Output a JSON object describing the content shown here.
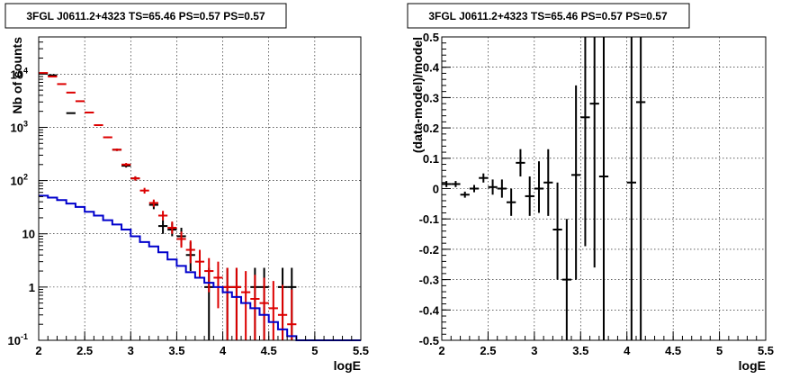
{
  "chart_data": [
    {
      "type": "scatter",
      "title": "3FGL J0611.2+4323 TS=65.46 PS=0.57 PS=0.57",
      "xlabel": "logE",
      "ylabel": "Nb of counts",
      "xlim": [
        2,
        5.5
      ],
      "ylim": [
        0.1,
        50000
      ],
      "yscale": "log",
      "grid": true,
      "x_ticks": [
        "2",
        "2.5",
        "3",
        "3.5",
        "4",
        "4.5",
        "5",
        "5.5"
      ],
      "y_ticks": [
        {
          "value": 0.1,
          "base": "10",
          "exp": "-1"
        },
        {
          "value": 1,
          "label": "1"
        },
        {
          "value": 10,
          "label": "10"
        },
        {
          "value": 100,
          "base": "10",
          "exp": "2"
        },
        {
          "value": 1000,
          "base": "10",
          "exp": "3"
        },
        {
          "value": 10000,
          "base": "10",
          "exp": "4"
        }
      ],
      "series": [
        {
          "color": "#000000",
          "kind": "errorbar",
          "x": [
            2.15,
            2.35,
            2.85,
            2.95,
            3.05,
            3.25,
            3.35,
            3.45,
            3.55,
            3.65,
            3.85,
            4.05,
            4.15,
            4.35,
            4.45,
            4.65,
            4.75
          ],
          "y": [
            9500,
            1850,
            380,
            190,
            110,
            35,
            14,
            12,
            9,
            4,
            1,
            1,
            1,
            1,
            1,
            1,
            1
          ],
          "ylo": [
            9400,
            1800,
            360,
            176,
            100,
            29,
            10,
            9,
            6,
            2,
            0.1,
            0.1,
            0.1,
            0.1,
            0.1,
            0.1,
            0.1
          ],
          "yhi": [
            9600,
            1900,
            400,
            204,
            120,
            41,
            18,
            16,
            13,
            7,
            2.3,
            2.3,
            2.3,
            2.3,
            2.3,
            2.3,
            2.3
          ]
        },
        {
          "color": "#dd0000",
          "kind": "errorbar",
          "x": [
            2.05,
            2.15,
            2.25,
            2.35,
            2.45,
            2.55,
            2.65,
            2.75,
            2.85,
            2.95,
            3.05,
            3.15,
            3.25,
            3.35,
            3.45,
            3.55,
            3.65,
            3.75,
            3.85,
            3.95,
            4.05,
            4.15,
            4.25,
            4.35,
            4.45,
            4.55,
            4.65,
            4.75
          ],
          "y": [
            10500,
            9000,
            6500,
            4500,
            3100,
            1900,
            1100,
            650,
            380,
            200,
            110,
            65,
            38,
            22,
            13,
            8,
            5,
            3,
            2,
            1.5,
            1,
            1,
            0.8,
            0.6,
            0.5,
            0.4,
            0.3,
            0.2
          ],
          "ylo": [
            10400,
            8900,
            6420,
            4430,
            3040,
            1860,
            1070,
            625,
            360,
            186,
            100,
            57,
            32,
            18,
            10,
            5.5,
            2.8,
            1.5,
            0.8,
            0.4,
            0.1,
            0.1,
            0.1,
            0.1,
            0.1,
            0.1,
            0.1,
            0.1
          ],
          "yhi": [
            10600,
            9100,
            6580,
            4570,
            3160,
            1940,
            1130,
            675,
            400,
            214,
            120,
            73,
            44,
            27,
            17,
            11,
            7.5,
            5,
            3.5,
            3,
            2.3,
            2.3,
            2,
            1.7,
            1.5,
            1.3,
            1.1,
            0.9
          ]
        },
        {
          "color": "#0000cc",
          "kind": "step",
          "edges": [
            2.0,
            2.1,
            2.2,
            2.3,
            2.4,
            2.5,
            2.6,
            2.7,
            2.8,
            2.9,
            3.0,
            3.1,
            3.2,
            3.3,
            3.4,
            3.5,
            3.6,
            3.7,
            3.8,
            3.9,
            4.0,
            4.1,
            4.2,
            4.3,
            4.4,
            4.5,
            4.6,
            4.7,
            4.8,
            4.9,
            5.0,
            5.5
          ],
          "y": [
            52,
            48,
            43,
            37,
            32,
            26,
            22,
            18,
            15,
            12,
            9,
            7,
            5.8,
            4.5,
            3.3,
            2.5,
            1.9,
            1.5,
            1.2,
            1.0,
            0.8,
            0.65,
            0.5,
            0.4,
            0.3,
            0.22,
            0.16,
            0.12,
            0.1,
            0.1,
            0.1
          ]
        }
      ]
    },
    {
      "type": "scatter",
      "title": "3FGL J0611.2+4323 TS=65.46 PS=0.57 PS=0.57",
      "xlabel": "logE",
      "ylabel": "(data-model)/model",
      "xlim": [
        2,
        5.5
      ],
      "ylim": [
        -0.5,
        0.5
      ],
      "grid": true,
      "x_ticks": [
        "2",
        "2.5",
        "3",
        "3.5",
        "4",
        "4.5",
        "5",
        "5.5"
      ],
      "y_ticks": [
        "-0.5",
        "-0.4",
        "-0.3",
        "-0.2",
        "-0.1",
        "0",
        "0.1",
        "0.2",
        "0.3",
        "0.4",
        "0.5"
      ],
      "series": [
        {
          "color": "#000000",
          "kind": "errorbar",
          "x": [
            2.05,
            2.15,
            2.25,
            2.35,
            2.45,
            2.55,
            2.65,
            2.75,
            2.85,
            2.95,
            3.05,
            3.15,
            3.25,
            3.35,
            3.45,
            3.55,
            3.65,
            3.75,
            4.05,
            4.15
          ],
          "y": [
            0.015,
            0.015,
            -0.02,
            0.0,
            0.035,
            0.005,
            0.0,
            -0.045,
            0.085,
            -0.025,
            0.0,
            0.02,
            -0.135,
            -0.3,
            0.045,
            0.235,
            0.28,
            0.04,
            0.02,
            0.285
          ],
          "ylo": [
            0.005,
            0.005,
            -0.03,
            -0.012,
            0.02,
            -0.02,
            -0.03,
            -0.09,
            0.04,
            -0.09,
            -0.08,
            -0.09,
            -0.3,
            -0.5,
            -0.3,
            -0.19,
            -0.26,
            -0.5,
            -0.5,
            -0.5
          ],
          "yhi": [
            0.025,
            0.025,
            -0.01,
            0.012,
            0.05,
            0.03,
            0.03,
            0.0,
            0.13,
            0.04,
            0.09,
            0.13,
            0.02,
            -0.1,
            0.34,
            0.5,
            0.5,
            0.5,
            0.5,
            0.5
          ]
        }
      ]
    }
  ]
}
